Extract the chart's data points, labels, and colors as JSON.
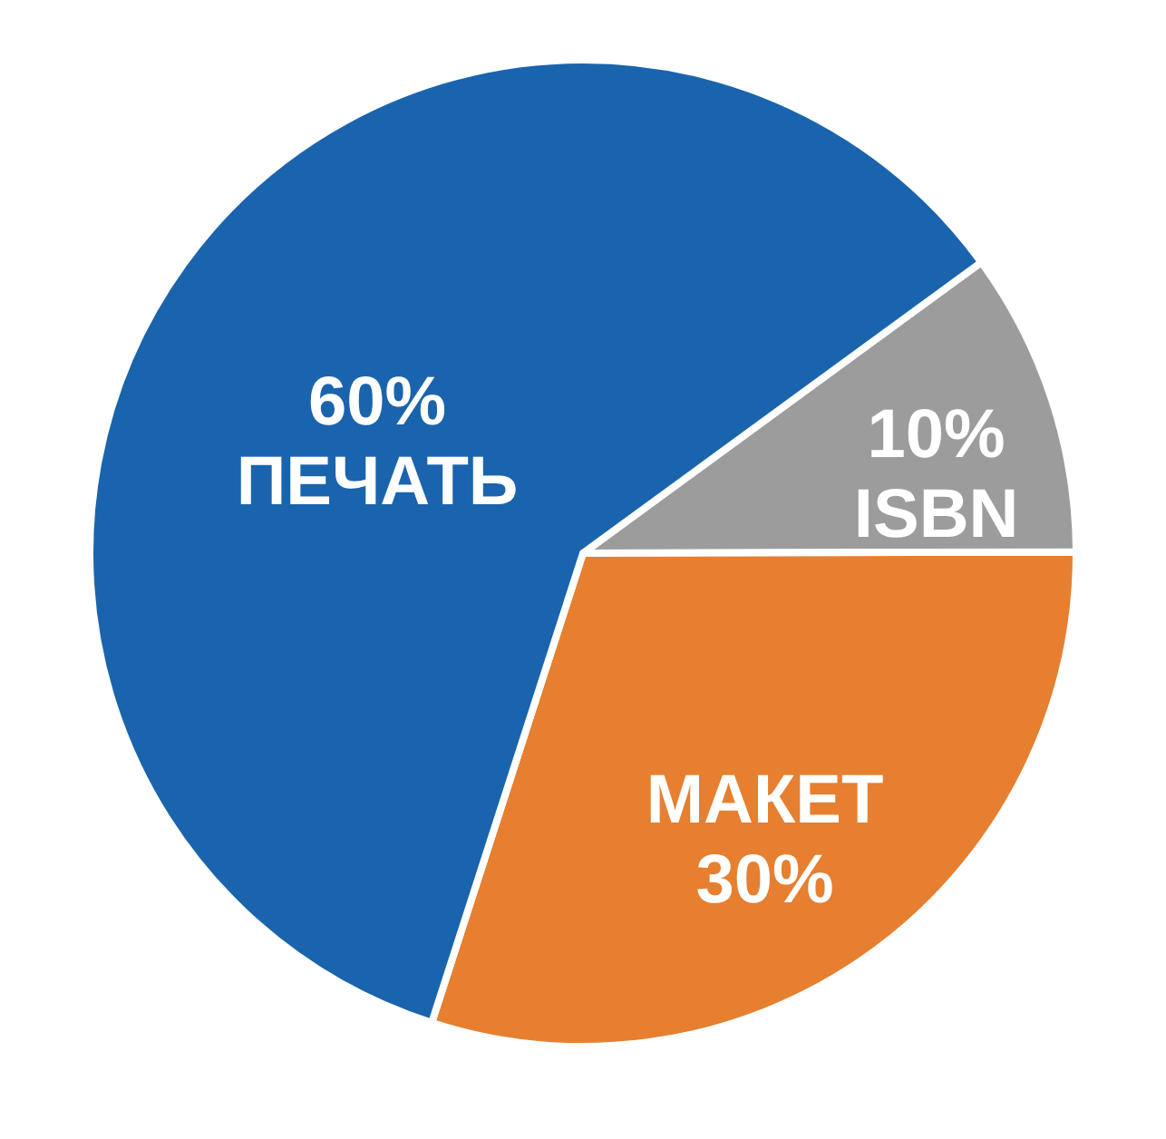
{
  "chart_data": {
    "type": "pie",
    "categories": [
      "ISBN",
      "МАКЕТ",
      "ПЕЧАТЬ"
    ],
    "values": [
      10,
      30,
      60
    ],
    "value_labels": [
      "10%",
      "30%",
      "60%"
    ],
    "colors": [
      "#9c9c9c",
      "#e67f30",
      "#1a64ad"
    ]
  }
}
